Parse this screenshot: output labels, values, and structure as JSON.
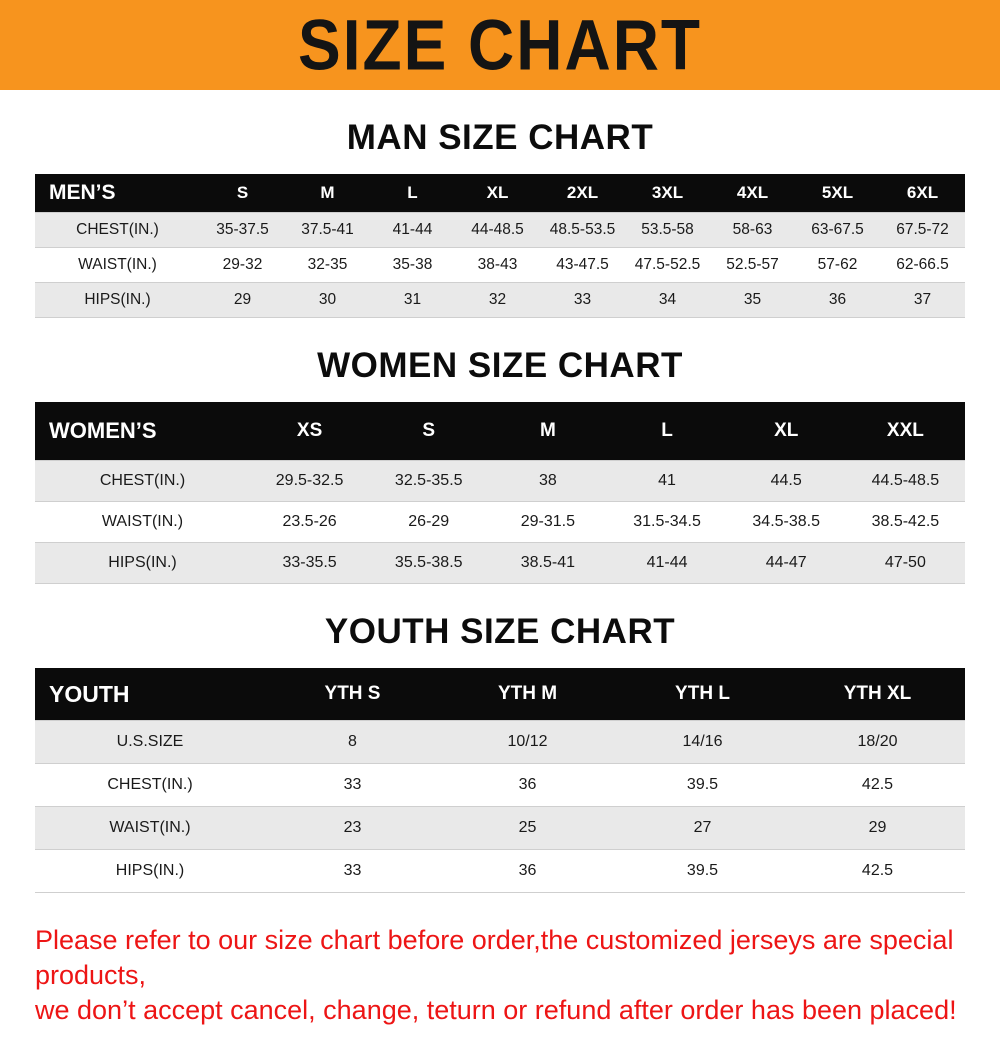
{
  "banner": {
    "title": "SIZE CHART"
  },
  "chart_data": [
    {
      "type": "table",
      "title": "MAN SIZE CHART",
      "header": [
        "MEN’S",
        "S",
        "M",
        "L",
        "XL",
        "2XL",
        "3XL",
        "4XL",
        "5XL",
        "6XL"
      ],
      "rows": [
        [
          "CHEST(IN.)",
          "35-37.5",
          "37.5-41",
          "41-44",
          "44-48.5",
          "48.5-53.5",
          "53.5-58",
          "58-63",
          "63-67.5",
          "67.5-72"
        ],
        [
          "WAIST(IN.)",
          "29-32",
          "32-35",
          "35-38",
          "38-43",
          "43-47.5",
          "47.5-52.5",
          "52.5-57",
          "57-62",
          "62-66.5"
        ],
        [
          "HIPS(IN.)",
          "29",
          "30",
          "31",
          "32",
          "33",
          "34",
          "35",
          "36",
          "37"
        ]
      ]
    },
    {
      "type": "table",
      "title": "WOMEN SIZE CHART",
      "header": [
        "WOMEN’S",
        "XS",
        "S",
        "M",
        "L",
        "XL",
        "XXL"
      ],
      "rows": [
        [
          "CHEST(IN.)",
          "29.5-32.5",
          "32.5-35.5",
          "38",
          "41",
          "44.5",
          "44.5-48.5"
        ],
        [
          "WAIST(IN.)",
          "23.5-26",
          "26-29",
          "29-31.5",
          "31.5-34.5",
          "34.5-38.5",
          "38.5-42.5"
        ],
        [
          "HIPS(IN.)",
          "33-35.5",
          "35.5-38.5",
          "38.5-41",
          "41-44",
          "44-47",
          "47-50"
        ]
      ]
    },
    {
      "type": "table",
      "title": "YOUTH SIZE CHART",
      "header": [
        "YOUTH",
        "YTH S",
        "YTH M",
        "YTH L",
        "YTH XL"
      ],
      "rows": [
        [
          "U.S.SIZE",
          "8",
          "10/12",
          "14/16",
          "18/20"
        ],
        [
          "CHEST(IN.)",
          "33",
          "36",
          "39.5",
          "42.5"
        ],
        [
          "WAIST(IN.)",
          "23",
          "25",
          "27",
          "29"
        ],
        [
          "HIPS(IN.)",
          "33",
          "36",
          "39.5",
          "42.5"
        ]
      ]
    }
  ],
  "footer": {
    "line1": "Please refer to our size chart before order,the customized jerseys are special products,",
    "line2": "we don’t accept cancel, change, teturn or refund after order has been placed!"
  },
  "colors": {
    "banner_bg": "#f7941e",
    "table_header_bg": "#0b0b0b",
    "row_stripe_bg": "#e9e9e9",
    "footer_text": "#ed1515"
  }
}
